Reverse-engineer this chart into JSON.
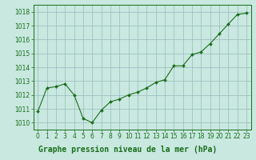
{
  "x": [
    0,
    1,
    2,
    3,
    4,
    5,
    6,
    7,
    8,
    9,
    10,
    11,
    12,
    13,
    14,
    15,
    16,
    17,
    18,
    19,
    20,
    21,
    22,
    23
  ],
  "y": [
    1010.8,
    1012.5,
    1012.6,
    1012.8,
    1012.0,
    1010.3,
    1010.0,
    1010.9,
    1011.5,
    1011.7,
    1012.0,
    1012.2,
    1012.5,
    1012.9,
    1013.1,
    1014.1,
    1014.1,
    1014.9,
    1015.1,
    1015.7,
    1016.4,
    1017.1,
    1017.8,
    1017.9
  ],
  "line_color": "#1a6e1a",
  "marker": "D",
  "marker_size": 2.0,
  "bg_color": "#c8e8e0",
  "grid_color": "#9ababa",
  "title": "Graphe pression niveau de la mer (hPa)",
  "title_color": "#1a6e1a",
  "title_fontsize": 7.0,
  "xlabel_ticks": [
    "0",
    "1",
    "2",
    "3",
    "4",
    "5",
    "6",
    "7",
    "8",
    "9",
    "10",
    "11",
    "12",
    "13",
    "14",
    "15",
    "16",
    "17",
    "18",
    "19",
    "20",
    "21",
    "22",
    "23"
  ],
  "ylim": [
    1009.5,
    1018.5
  ],
  "yticks": [
    1010,
    1011,
    1012,
    1013,
    1014,
    1015,
    1016,
    1017,
    1018
  ],
  "tick_color": "#1a6e1a",
  "tick_fontsize": 5.5,
  "spine_color": "#1a6e1a",
  "linewidth": 0.8
}
